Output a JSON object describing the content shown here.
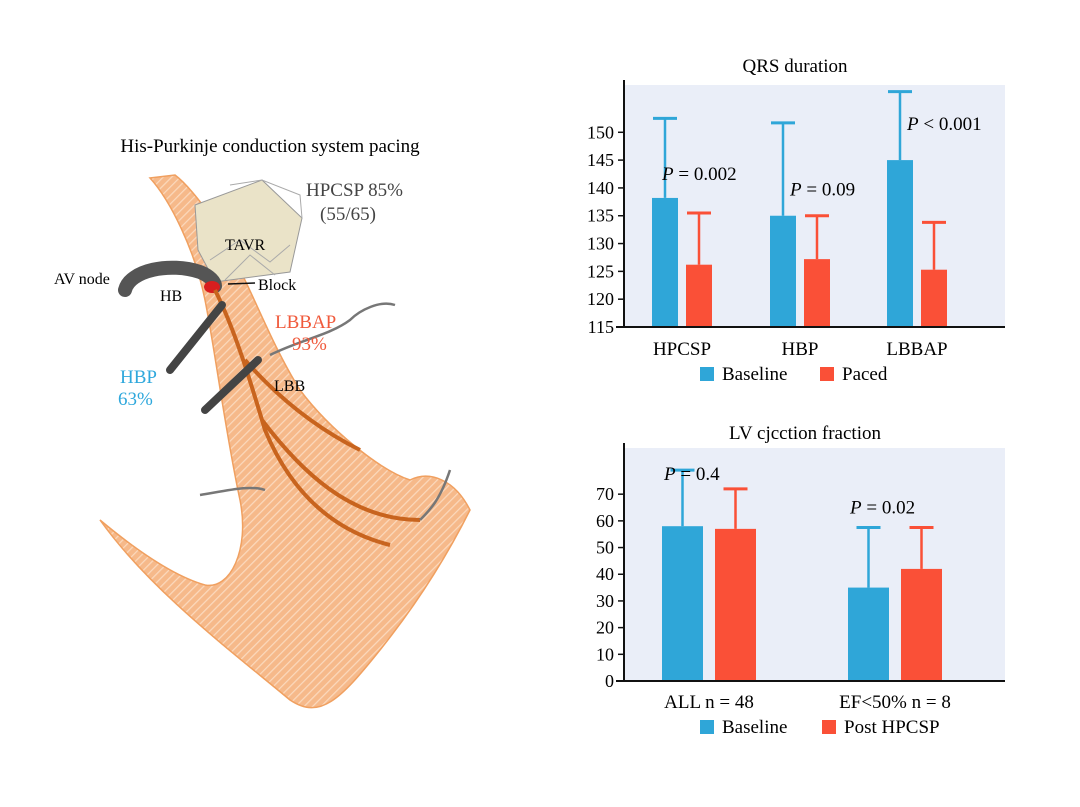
{
  "diagram": {
    "title": "His-Purkinje conduction system pacing",
    "labels": {
      "hpcsp": "HPCSP 85%",
      "hpcsp_count": "(55/65)",
      "tavr": "TAVR",
      "av_node": "AV node",
      "hb": "HB",
      "block": "Block",
      "lbbap": "LBBAP",
      "lbbap_pct": "93%",
      "hbp": "HBP",
      "hbp_pct": "63%",
      "lbb": "LBB"
    },
    "colors": {
      "myocardium": "#f0a060",
      "conduction": "#c8641e",
      "lbbap_text": "#f05a3c",
      "hbp_text": "#2fa8dc",
      "lead": "#555555"
    }
  },
  "chart_data": [
    {
      "type": "bar",
      "title": "QRS duration",
      "categories": [
        "HPCSP",
        "HBP",
        "LBBAP"
      ],
      "series": [
        {
          "name": "Baseline",
          "color": "#2fa6d8",
          "values": [
            138.2,
            135,
            145
          ],
          "error_upper": [
            152.5,
            151.7,
            157.3
          ]
        },
        {
          "name": "Paced",
          "color": "#fa5037",
          "values": [
            126.2,
            127.2,
            125.3
          ],
          "error_upper": [
            135.5,
            135,
            133.8
          ]
        }
      ],
      "annotations": [
        {
          "category": "HPCSP",
          "text": "P = 0.002"
        },
        {
          "category": "HBP",
          "text": "P = 0.09"
        },
        {
          "category": "LBBAP",
          "text": "P < 0.001"
        }
      ],
      "yticks": [
        115,
        120,
        125,
        130,
        135,
        140,
        145,
        150
      ],
      "ylim": [
        115,
        158.5
      ],
      "xlabel": "",
      "ylabel": "",
      "legend": "bottom",
      "background": "#eaeef8"
    },
    {
      "type": "bar",
      "title": "LV cjcction fraction",
      "categories": [
        "ALL n = 48",
        "EF<50% n = 8"
      ],
      "series": [
        {
          "name": "Baseline",
          "color": "#2fa6d8",
          "values": [
            58,
            35
          ],
          "error_upper": [
            79,
            57.5
          ]
        },
        {
          "name": "Post HPCSP",
          "color": "#fa5037",
          "values": [
            57,
            42
          ],
          "error_upper": [
            72,
            57.5
          ]
        }
      ],
      "annotations": [
        {
          "category": "ALL n = 48",
          "text": "P = 0.4"
        },
        {
          "category": "EF<50% n = 8",
          "text": "P = 0.02"
        }
      ],
      "yticks": [
        0,
        10,
        20,
        30,
        40,
        50,
        60,
        70
      ],
      "ylim": [
        0,
        87.3
      ],
      "xlabel": "",
      "ylabel": "",
      "legend": "bottom",
      "background": "#eaeef8"
    }
  ]
}
